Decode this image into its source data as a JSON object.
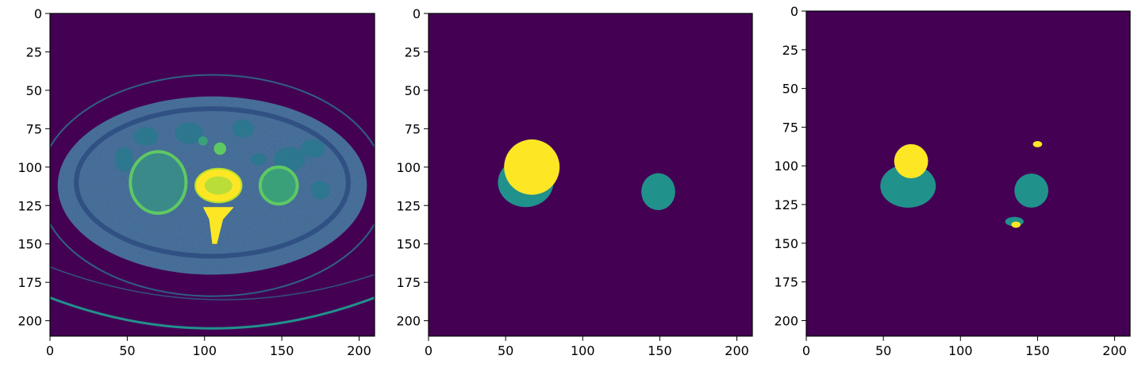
{
  "figure": {
    "background": "#ffffff",
    "colormap": "viridis",
    "colors": {
      "background_class": "#440154",
      "class_1": "#21918c",
      "class_2": "#fde725",
      "ct_body": "#3b5f8e",
      "ct_fat": "#2a788e",
      "ct_bright": "#5ec962"
    }
  },
  "chart_data": [
    {
      "type": "heatmap",
      "panel": "ct-slice",
      "title": "",
      "xlabel": "",
      "ylabel": "",
      "xlim": [
        0,
        210
      ],
      "ylim": [
        210,
        0
      ],
      "xticks": [
        0,
        50,
        100,
        150,
        200
      ],
      "yticks": [
        0,
        25,
        50,
        75,
        100,
        125,
        150,
        175,
        200
      ],
      "grid": false,
      "image_size": [
        210,
        210
      ],
      "structures": [
        {
          "name": "body-outline",
          "cx": 105,
          "cy": 112,
          "rx": 100,
          "ry": 60
        },
        {
          "name": "left-kidney",
          "cx": 70,
          "cy": 110,
          "rx": 18,
          "ry": 20
        },
        {
          "name": "right-kidney",
          "cx": 148,
          "cy": 112,
          "rx": 12,
          "ry": 12
        },
        {
          "name": "vertebral-body",
          "cx": 109,
          "cy": 112,
          "rx": 15,
          "ry": 12
        },
        {
          "name": "spinal-process",
          "cx": 107,
          "cy": 137,
          "rx": 4,
          "ry": 15
        }
      ]
    },
    {
      "type": "heatmap",
      "panel": "ground-truth-mask",
      "title": "",
      "xlabel": "",
      "ylabel": "",
      "xlim": [
        0,
        210
      ],
      "ylim": [
        210,
        0
      ],
      "xticks": [
        0,
        50,
        100,
        150,
        200
      ],
      "yticks": [
        0,
        25,
        50,
        75,
        100,
        125,
        150,
        175,
        200
      ],
      "grid": false,
      "classes": [
        0,
        1,
        2
      ],
      "regions": [
        {
          "class": 1,
          "cx": 63,
          "cy": 110,
          "rx": 18,
          "ry": 16
        },
        {
          "class": 2,
          "cx": 67,
          "cy": 100,
          "rx": 18,
          "ry": 18
        },
        {
          "class": 1,
          "cx": 149,
          "cy": 116,
          "rx": 11,
          "ry": 12
        }
      ]
    },
    {
      "type": "heatmap",
      "panel": "predicted-mask",
      "title": "",
      "xlabel": "",
      "ylabel": "",
      "xlim": [
        0,
        210
      ],
      "ylim": [
        210,
        0
      ],
      "xticks": [
        0,
        50,
        100,
        150,
        200
      ],
      "yticks": [
        0,
        25,
        50,
        75,
        100,
        125,
        150,
        175,
        200
      ],
      "grid": false,
      "classes": [
        0,
        1,
        2
      ],
      "regions": [
        {
          "class": 1,
          "cx": 66,
          "cy": 113,
          "rx": 18,
          "ry": 14
        },
        {
          "class": 2,
          "cx": 68,
          "cy": 97,
          "rx": 11,
          "ry": 11
        },
        {
          "class": 1,
          "cx": 146,
          "cy": 116,
          "rx": 11,
          "ry": 11
        },
        {
          "class": 1,
          "cx": 135,
          "cy": 136,
          "rx": 6,
          "ry": 3
        },
        {
          "class": 2,
          "cx": 136,
          "cy": 138,
          "rx": 3,
          "ry": 2
        },
        {
          "class": 2,
          "cx": 150,
          "cy": 86,
          "rx": 3,
          "ry": 2
        }
      ]
    }
  ]
}
